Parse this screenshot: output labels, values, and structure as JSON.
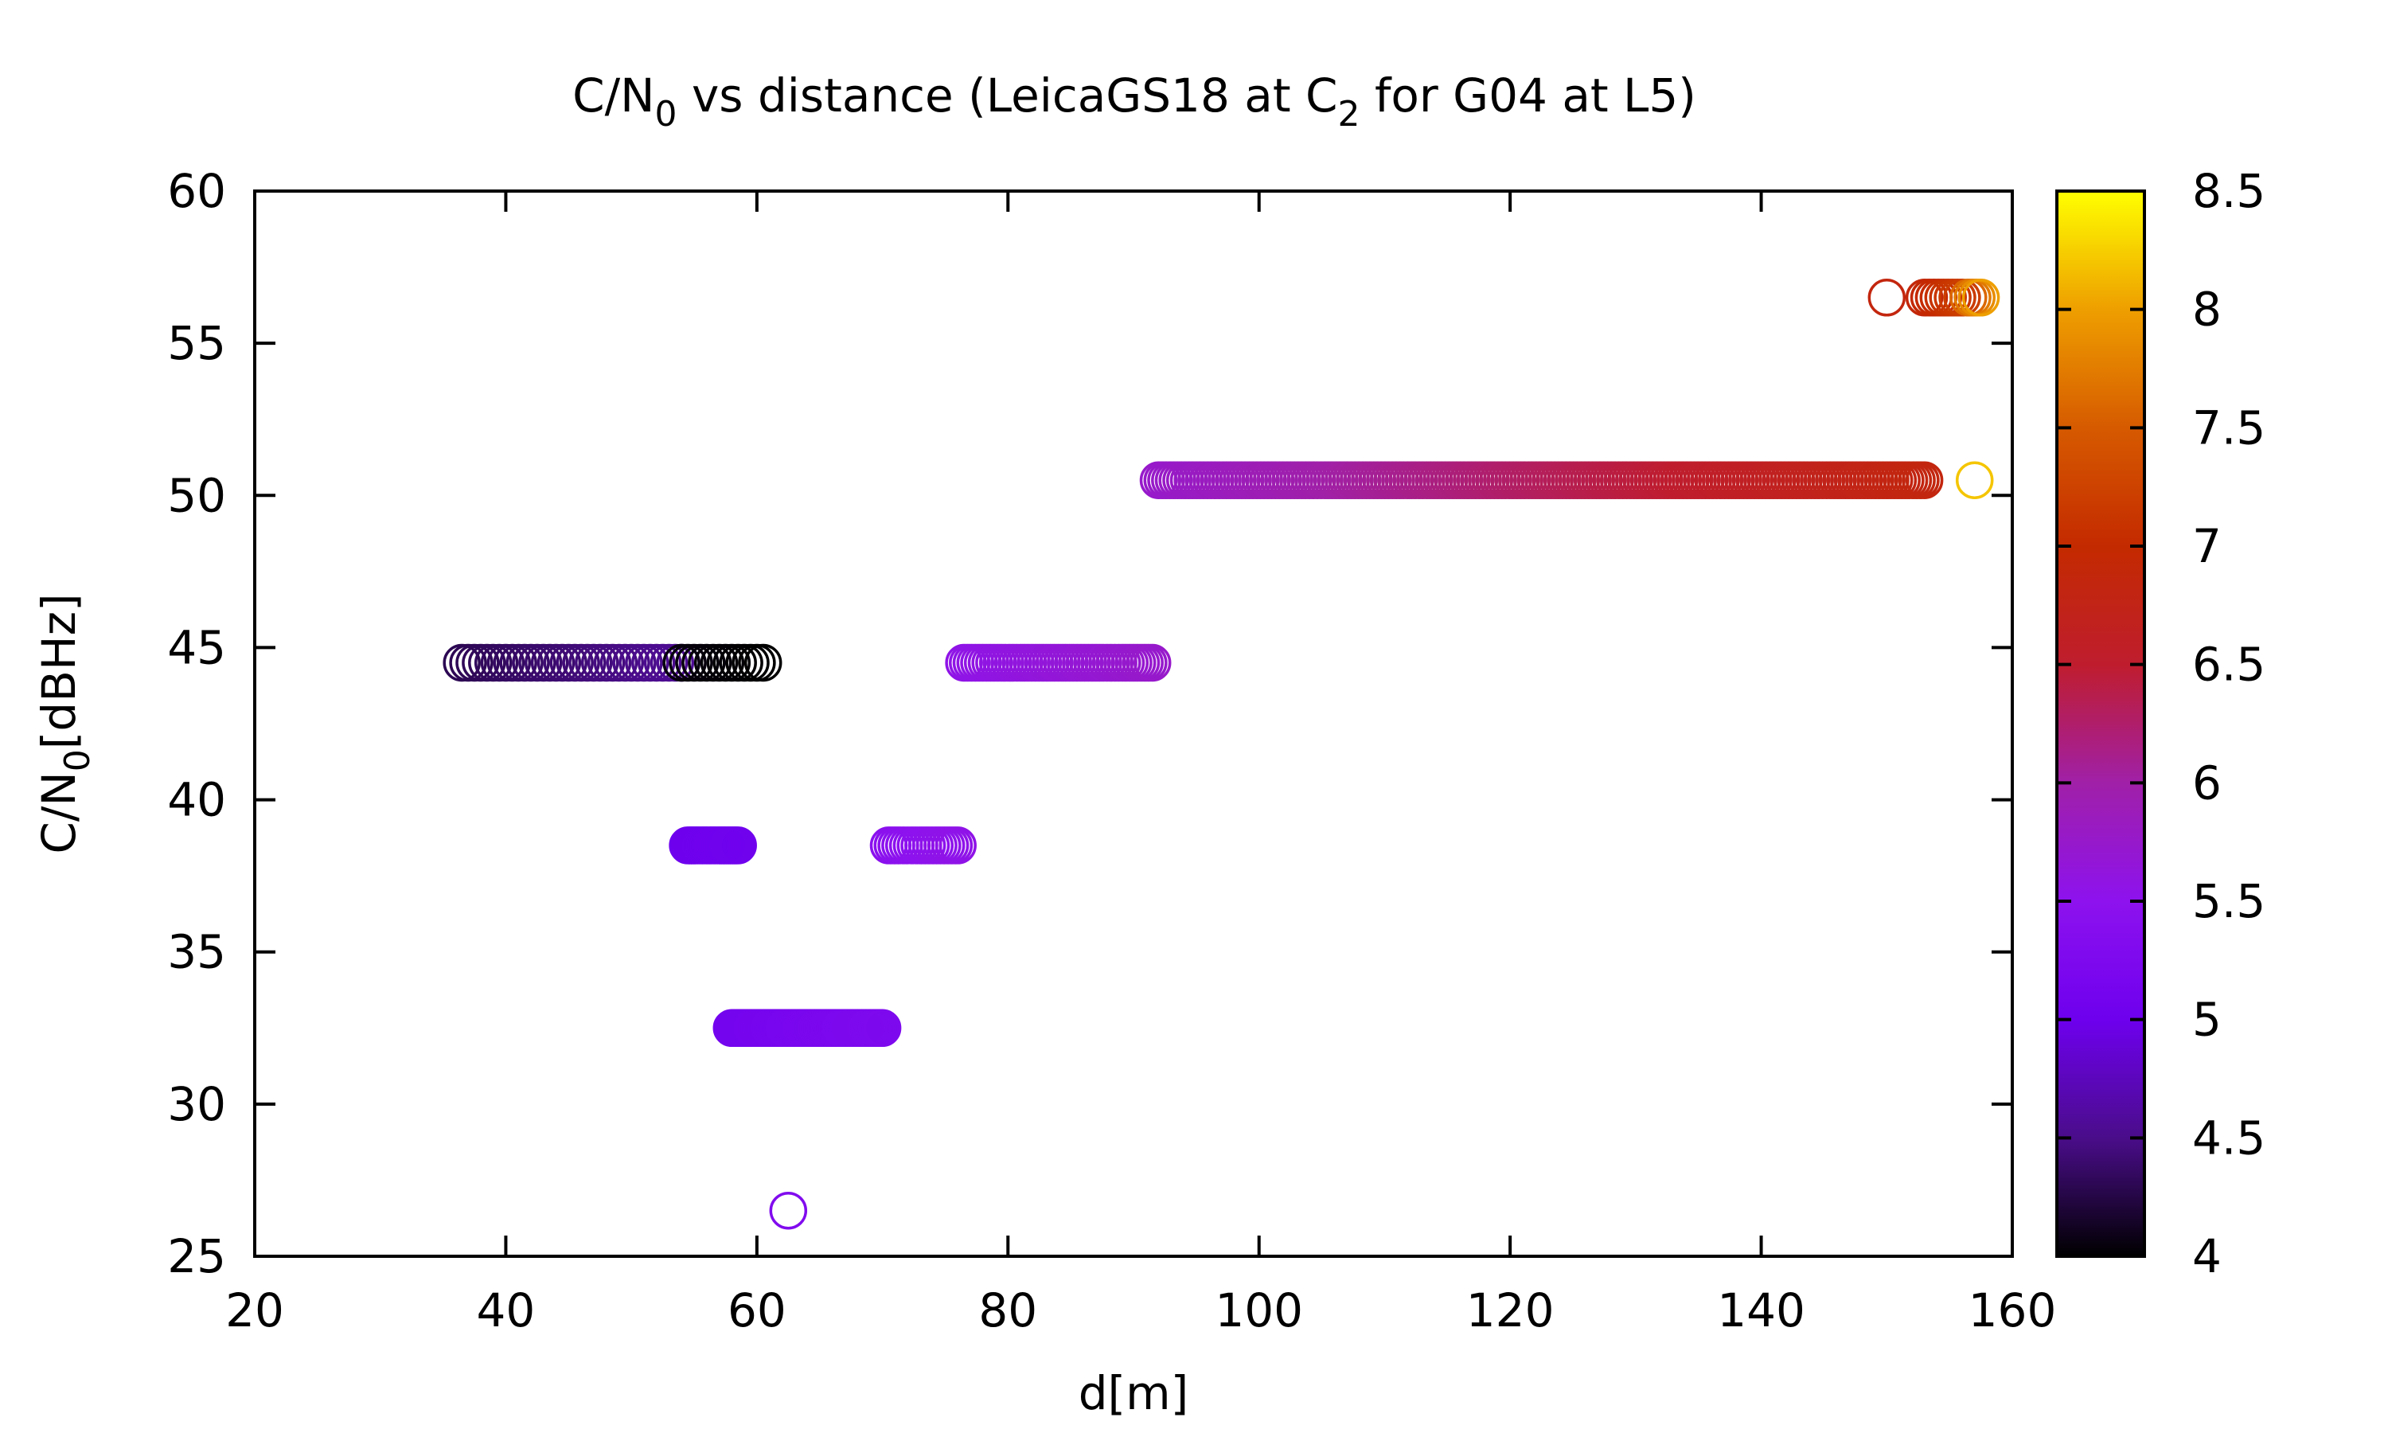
{
  "chart_data": {
    "type": "scatter",
    "title": {
      "prefix": "C/N",
      "sub": "0",
      "middle": " vs distance (LeicaGS18 at C",
      "sub2": "2",
      "suffix": " for G04 at L5)"
    },
    "xlabel": "d[m]",
    "ylabel": {
      "prefix": "C/N",
      "sub": "0",
      "suffix": "[dBHz]"
    },
    "xlim": [
      20,
      160
    ],
    "ylim": [
      25,
      60
    ],
    "xticks": [
      "20",
      "40",
      "60",
      "80",
      "100",
      "120",
      "140",
      "160"
    ],
    "yticks": [
      "25",
      "30",
      "35",
      "40",
      "45",
      "50",
      "55",
      "60"
    ],
    "colorbar": {
      "range": [
        4,
        8.5
      ],
      "ticks": [
        "4",
        "4.5",
        "5",
        "5.5",
        "6",
        "6.5",
        "7",
        "7.5",
        "8",
        "8.5"
      ],
      "palette": "black-purple-red-orange-yellow"
    },
    "grid": false,
    "marker": "open-circle",
    "segments": [
      {
        "y": 44.5,
        "x_start": 36.5,
        "x_end": 54.0,
        "c_start": 4.3,
        "c_end": 4.55,
        "spacing": 0.5
      },
      {
        "y": 44.5,
        "x_start": 54.0,
        "x_end": 60.5,
        "c_start": 4.05,
        "c_end": 4.0,
        "spacing": 0.5
      },
      {
        "y": 38.5,
        "x_start": 54.5,
        "x_end": 58.5,
        "c_start": 5.0,
        "c_end": 5.05,
        "spacing": 0.15
      },
      {
        "y": 32.5,
        "x_start": 58.0,
        "x_end": 70.0,
        "c_start": 5.1,
        "c_end": 5.25,
        "spacing": 0.15
      },
      {
        "y": 26.5,
        "x_start": 62.5,
        "x_end": 62.5,
        "c_start": 5.3,
        "c_end": 5.3,
        "spacing": 1
      },
      {
        "y": 38.5,
        "x_start": 70.5,
        "x_end": 76.0,
        "c_start": 5.45,
        "c_end": 5.55,
        "spacing": 0.3
      },
      {
        "y": 44.5,
        "x_start": 76.5,
        "x_end": 91.5,
        "c_start": 5.55,
        "c_end": 5.75,
        "spacing": 0.3
      },
      {
        "y": 50.5,
        "x_start": 92.0,
        "x_end": 153.0,
        "c_start": 5.75,
        "c_end": 6.85,
        "spacing": 0.3
      },
      {
        "y": 50.5,
        "x_start": 157.0,
        "x_end": 157.0,
        "c_start": 8.2,
        "c_end": 8.2,
        "spacing": 1
      },
      {
        "y": 56.5,
        "x_start": 150.0,
        "x_end": 150.0,
        "c_start": 6.85,
        "c_end": 6.85,
        "spacing": 1
      },
      {
        "y": 56.5,
        "x_start": 153.0,
        "x_end": 156.0,
        "c_start": 6.9,
        "c_end": 7.2,
        "spacing": 0.4
      },
      {
        "y": 56.5,
        "x_start": 156.5,
        "x_end": 157.5,
        "c_start": 7.6,
        "c_end": 8.0,
        "spacing": 0.4
      }
    ]
  }
}
